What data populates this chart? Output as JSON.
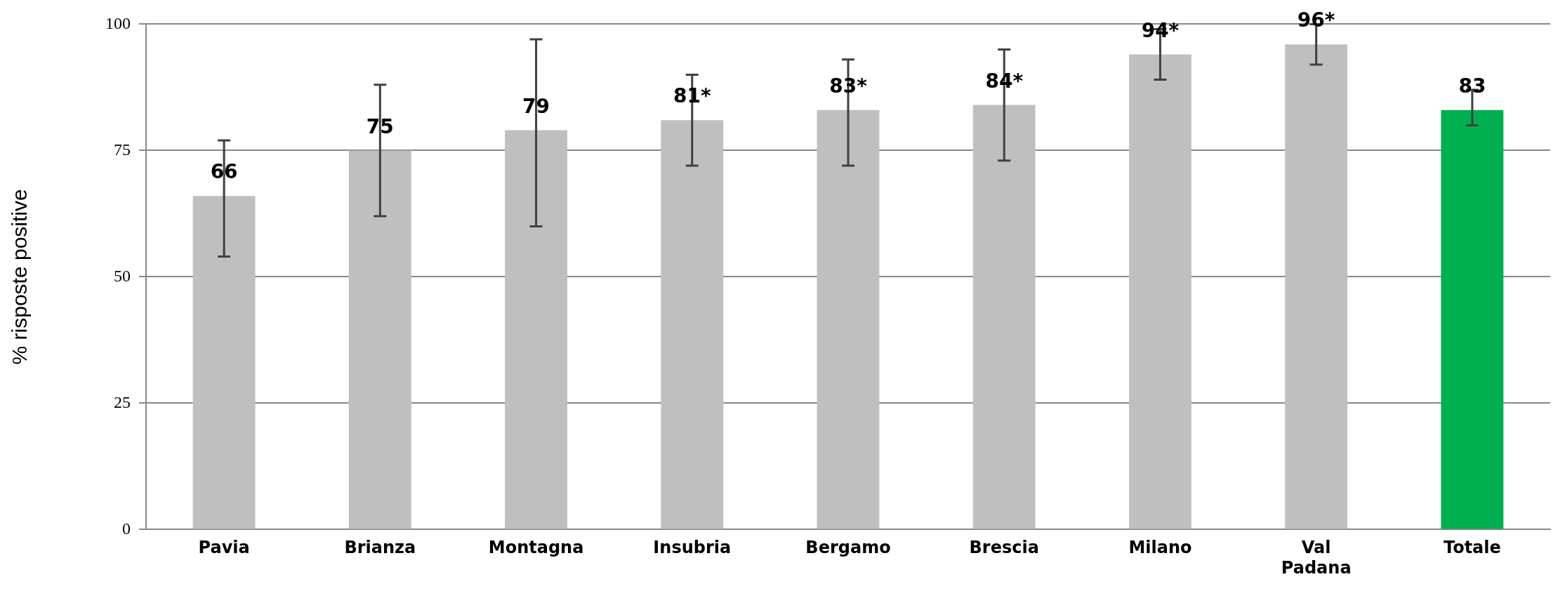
{
  "chart_data": {
    "type": "bar",
    "ylabel": "% risposte positive",
    "categories": [
      "Pavia",
      "Brianza",
      "Montagna",
      "Insubria",
      "Bergamo",
      "Brescia",
      "Milano",
      "Val\nPadana",
      "Totale"
    ],
    "values": [
      66,
      75,
      79,
      81,
      83,
      84,
      94,
      96,
      83
    ],
    "value_labels": [
      "66",
      "75",
      "79",
      "81*",
      "83*",
      "84*",
      "94*",
      "96*",
      "83"
    ],
    "errors": [
      [
        54,
        77
      ],
      [
        62,
        88
      ],
      [
        60,
        97
      ],
      [
        72,
        90
      ],
      [
        72,
        93
      ],
      [
        73,
        95
      ],
      [
        89,
        99
      ],
      [
        92,
        100
      ],
      [
        80,
        87
      ]
    ],
    "colors": [
      "#bfbfbf",
      "#bfbfbf",
      "#bfbfbf",
      "#bfbfbf",
      "#bfbfbf",
      "#bfbfbf",
      "#bfbfbf",
      "#bfbfbf",
      "#00b050"
    ],
    "ylim": [
      0,
      100
    ],
    "yticks": [
      0,
      25,
      50,
      75,
      100
    ],
    "grid": "y",
    "legend": false
  }
}
